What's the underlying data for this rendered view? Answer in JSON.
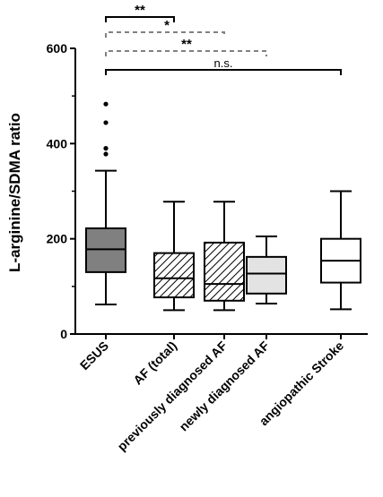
{
  "chart_data": {
    "type": "boxplot",
    "ylabel": "L-arginine/SDMA ratio",
    "xlabel": "",
    "ylim": [
      0,
      600
    ],
    "yticks": [
      0,
      200,
      400,
      600
    ],
    "categories": [
      "ESUS",
      "AF (total)",
      "previously diagnosed AF",
      "newly diagnosed AF",
      "angiopathic Stroke"
    ],
    "boxes": [
      {
        "name": "ESUS",
        "whisker_low": 62,
        "q1": 130,
        "median": 178,
        "q3": 222,
        "whisker_high": 343,
        "outliers": [
          378,
          390,
          444,
          483
        ],
        "fill": "#808080",
        "hatched": false
      },
      {
        "name": "AF (total)",
        "whisker_low": 50,
        "q1": 77,
        "median": 117,
        "q3": 170,
        "whisker_high": 278,
        "outliers": [],
        "fill": "#ffffff",
        "hatched": true
      },
      {
        "name": "previously diagnosed AF",
        "whisker_low": 50,
        "q1": 70,
        "median": 105,
        "q3": 192,
        "whisker_high": 278,
        "outliers": [],
        "fill": "#ffffff",
        "hatched": true
      },
      {
        "name": "newly diagnosed AF",
        "whisker_low": 64,
        "q1": 85,
        "median": 127,
        "q3": 162,
        "whisker_high": 205,
        "outliers": [],
        "fill": "#e3e3e3",
        "hatched": false
      },
      {
        "name": "angiopathic Stroke",
        "whisker_low": 52,
        "q1": 108,
        "median": 154,
        "q3": 200,
        "whisker_high": 300,
        "outliers": [],
        "fill": "#ffffff",
        "hatched": false
      }
    ],
    "significance": [
      {
        "from": 0,
        "to": 1,
        "label": "**",
        "style": "solid",
        "color": "#000000"
      },
      {
        "from": 0,
        "to": 2,
        "label": "*",
        "style": "dashed",
        "color": "#808080"
      },
      {
        "from": 0,
        "to": 3,
        "label": "**",
        "style": "dashed",
        "color": "#808080"
      },
      {
        "from": 0,
        "to": 4,
        "label": "n.s.",
        "style": "solid",
        "color": "#000000"
      }
    ]
  }
}
